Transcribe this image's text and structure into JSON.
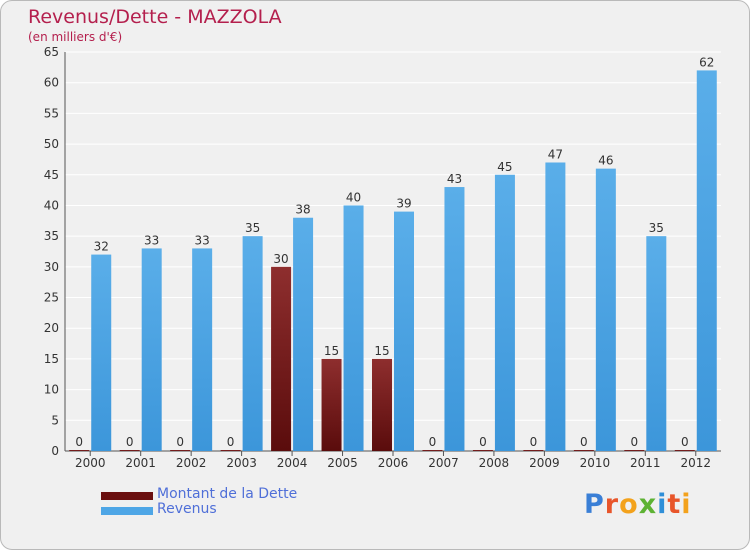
{
  "header": {
    "title": "Revenus/Dette - MAZZOLA",
    "subtitle": "(en milliers d'€)"
  },
  "colors": {
    "debt": "#7a1e1e",
    "revenue": "#4ea6e6",
    "title": "#b41f4d"
  },
  "logo": {
    "text": "Proxiti"
  },
  "chart_data": {
    "type": "bar",
    "title": "Revenus/Dette - MAZZOLA",
    "subtitle": "(en milliers d'€)",
    "xlabel": "",
    "ylabel": "",
    "ylim": [
      0,
      65
    ],
    "yticks": [
      0,
      5,
      10,
      15,
      20,
      25,
      30,
      35,
      40,
      45,
      50,
      55,
      60,
      65
    ],
    "grid": true,
    "legend_position": "bottom-left",
    "categories": [
      "2000",
      "2001",
      "2002",
      "2003",
      "2004",
      "2005",
      "2006",
      "2007",
      "2008",
      "2009",
      "2010",
      "2011",
      "2012"
    ],
    "series": [
      {
        "name": "Montant de la Dette",
        "values": [
          0,
          0,
          0,
          0,
          30,
          15,
          15,
          0,
          0,
          0,
          0,
          0,
          0
        ]
      },
      {
        "name": "Revenus",
        "values": [
          32,
          33,
          33,
          35,
          38,
          40,
          39,
          43,
          45,
          47,
          46,
          35,
          62
        ]
      }
    ]
  }
}
